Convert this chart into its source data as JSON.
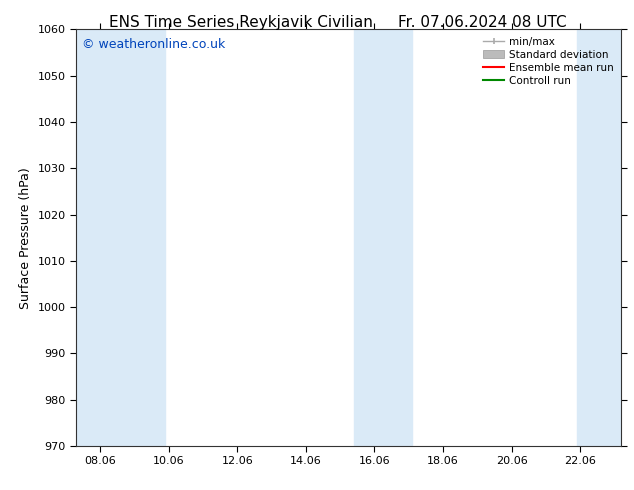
{
  "title_left": "ENS Time Series Reykjavik Civilian",
  "title_right": "Fr. 07.06.2024 08 UTC",
  "ylabel": "Surface Pressure (hPa)",
  "ylim": [
    970,
    1060
  ],
  "yticks": [
    970,
    980,
    990,
    1000,
    1010,
    1020,
    1030,
    1040,
    1050,
    1060
  ],
  "xlim_start": 7.3,
  "xlim_end": 23.2,
  "xtick_labels": [
    "08.06",
    "10.06",
    "12.06",
    "14.06",
    "16.06",
    "18.06",
    "20.06",
    "22.06"
  ],
  "xtick_positions": [
    8.0,
    10.0,
    12.0,
    14.0,
    16.0,
    18.0,
    20.0,
    22.0
  ],
  "shaded_bands": [
    {
      "x_start": 7.3,
      "x_end": 9.9
    },
    {
      "x_start": 15.4,
      "x_end": 17.1
    },
    {
      "x_start": 21.9,
      "x_end": 23.2
    }
  ],
  "band_color": "#daeaf7",
  "background_color": "#ffffff",
  "watermark": "© weatheronline.co.uk",
  "watermark_color": "#0044bb",
  "legend_labels": [
    "min/max",
    "Standard deviation",
    "Ensemble mean run",
    "Controll run"
  ],
  "legend_line_colors": [
    "#aaaaaa",
    "#bbbbbb",
    "#ff0000",
    "#008800"
  ],
  "title_fontsize": 11,
  "axis_fontsize": 9,
  "tick_fontsize": 8,
  "watermark_fontsize": 9
}
